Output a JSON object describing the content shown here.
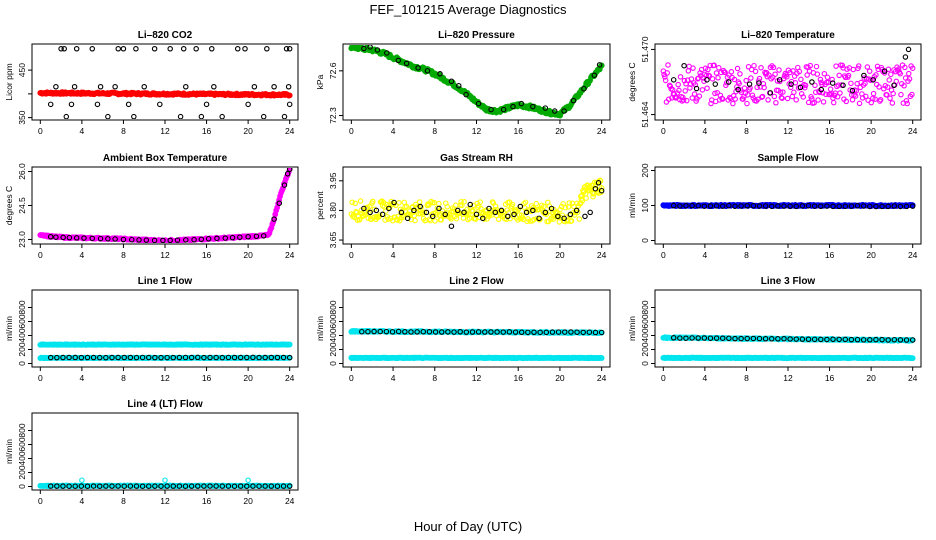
{
  "figure": {
    "title": "FEF_101215  Average Diagnostics",
    "xlabel": "Hour of Day (UTC)"
  },
  "chart_data": [
    {
      "type": "scatter",
      "title": "Li–820 CO2",
      "ylabel": "Licor ppm",
      "xticks": [
        0,
        4,
        8,
        12,
        16,
        20,
        24
      ],
      "xlim": [
        -0.8,
        24.8
      ],
      "yticks": [
        350,
        400,
        450
      ],
      "ytick_labels": [
        "350",
        "",
        "450"
      ],
      "ylim": [
        345,
        505
      ],
      "series": [
        {
          "color": "#ff0000",
          "marker": "dot",
          "kind": "band",
          "x_range": [
            0,
            24
          ],
          "y_start": 402,
          "y_end": 398,
          "jitter": 2
        },
        {
          "color": "#000000",
          "marker": "circle",
          "kind": "scatter",
          "x": [
            2.0,
            2.3,
            3.5,
            5.0,
            7.5,
            8.0,
            9.2,
            11.0,
            12.5,
            13.8,
            15.0,
            16.5,
            19.0,
            19.7,
            21.8,
            23.7,
            24.0,
            1.5,
            3.3,
            5.8,
            7.2,
            10.0,
            14.0,
            16.7,
            20.6,
            22.5,
            23.9,
            1.0,
            3.0,
            5.5,
            8.5,
            11.5,
            16.0,
            20.0,
            24.0,
            2.5,
            6.5,
            9.0,
            13.5,
            15.5,
            17.5,
            21.5,
            23.5
          ],
          "y": [
            495,
            495,
            495,
            495,
            495,
            495,
            495,
            495,
            495,
            495,
            495,
            495,
            495,
            495,
            495,
            495,
            495,
            415,
            415,
            415,
            415,
            415,
            415,
            415,
            415,
            415,
            415,
            378,
            378,
            378,
            378,
            378,
            378,
            378,
            378,
            352,
            352,
            352,
            352,
            352,
            352,
            352,
            352
          ]
        }
      ]
    },
    {
      "type": "line",
      "title": "Li–820 Pressure",
      "ylabel": "kPa",
      "xticks": [
        0,
        4,
        8,
        12,
        16,
        20,
        24
      ],
      "xlim": [
        -0.8,
        24.8
      ],
      "yticks": [
        72.3,
        72.6
      ],
      "ylim": [
        72.27,
        72.78
      ],
      "series": [
        {
          "color": "#00aa00",
          "marker": "dot",
          "kind": "profile",
          "jitter": 0.012,
          "x": [
            0,
            1,
            2,
            3,
            4,
            5,
            6,
            7,
            8,
            9,
            10,
            11,
            12,
            13,
            14,
            15,
            16,
            17,
            18,
            19,
            20,
            21,
            22,
            23,
            24
          ],
          "y": [
            72.76,
            72.75,
            72.74,
            72.72,
            72.69,
            72.66,
            72.63,
            72.61,
            72.58,
            72.54,
            72.5,
            72.45,
            72.39,
            72.34,
            72.33,
            72.35,
            72.37,
            72.36,
            72.34,
            72.32,
            72.31,
            72.37,
            72.46,
            72.55,
            72.63
          ]
        },
        {
          "color": "#000000",
          "marker": "circle",
          "kind": "scatter",
          "x": [
            1.2,
            1.8,
            2.5,
            3.4,
            4.5,
            5.3,
            6.4,
            7.3,
            8.5,
            9.6,
            10.3,
            11.0,
            12.2,
            13.4,
            14.6,
            15.5,
            16.3,
            17.4,
            18.6,
            19.5,
            20.4,
            21.3,
            22.3,
            23.3,
            23.8
          ],
          "y": [
            72.75,
            72.76,
            72.74,
            72.72,
            72.67,
            72.65,
            72.62,
            72.6,
            72.58,
            72.53,
            72.5,
            72.44,
            72.38,
            72.34,
            72.34,
            72.36,
            72.38,
            72.36,
            72.35,
            72.33,
            72.33,
            72.4,
            72.48,
            72.57,
            72.64
          ]
        }
      ]
    },
    {
      "type": "scatter",
      "title": "Li–820 Temperature",
      "ylabel": "degrees C",
      "xticks": [
        0,
        4,
        8,
        12,
        16,
        20,
        24
      ],
      "xlim": [
        -0.8,
        24.8
      ],
      "yticks": [
        51.464,
        51.47
      ],
      "ytick_labels": [
        "51.464",
        "51.470"
      ],
      "ylim": [
        51.4635,
        51.4705
      ],
      "series": [
        {
          "color": "#ff00ff",
          "marker": "circle",
          "kind": "band",
          "x_range": [
            0,
            24
          ],
          "y_start": 51.4668,
          "y_end": 51.4668,
          "jitter": 0.0018,
          "count": 320
        },
        {
          "color": "#000000",
          "marker": "circle",
          "kind": "scatter",
          "x": [
            1.0,
            2.0,
            3.2,
            4.2,
            5.0,
            6.3,
            7.2,
            8.3,
            9.2,
            10.3,
            11.2,
            12.3,
            13.2,
            14.3,
            15.2,
            16.3,
            17.3,
            18.2,
            19.3,
            20.2,
            21.3,
            22.2,
            23.3,
            23.6
          ],
          "y": [
            51.4672,
            51.4685,
            51.4664,
            51.4672,
            51.4668,
            51.467,
            51.4663,
            51.4668,
            51.4669,
            51.466,
            51.4672,
            51.4668,
            51.4665,
            51.467,
            51.4663,
            51.4669,
            51.4667,
            51.4662,
            51.4676,
            51.4672,
            51.468,
            51.4667,
            51.4693,
            51.47
          ]
        }
      ]
    },
    {
      "type": "line",
      "title": "Ambient Box Temperature",
      "ylabel": "degrees C",
      "xticks": [
        0,
        4,
        8,
        12,
        16,
        20,
        24
      ],
      "xlim": [
        -0.8,
        24.8
      ],
      "yticks": [
        23.0,
        24.5,
        26.0
      ],
      "ytick_labels": [
        "23.0",
        "24.5",
        "26.0"
      ],
      "ylim": [
        22.8,
        26.2
      ],
      "series": [
        {
          "color": "#ff00ff",
          "marker": "dot",
          "kind": "profile",
          "jitter": 0.03,
          "x": [
            0,
            1,
            2,
            3,
            4,
            5,
            6,
            7,
            8,
            9,
            10,
            11,
            12,
            13,
            14,
            15,
            16,
            17,
            18,
            19,
            20,
            21,
            22,
            22.5,
            23,
            23.5,
            24
          ],
          "y": [
            23.22,
            23.13,
            23.1,
            23.08,
            23.07,
            23.06,
            23.05,
            23.04,
            23.02,
            23.0,
            22.98,
            22.96,
            22.95,
            22.96,
            22.98,
            23.0,
            23.03,
            23.05,
            23.07,
            23.1,
            23.13,
            23.15,
            23.2,
            23.9,
            24.8,
            25.5,
            26.1
          ]
        },
        {
          "color": "#000000",
          "marker": "circle",
          "kind": "scatter",
          "x": [
            1.0,
            1.5,
            2.2,
            2.8,
            3.5,
            4.2,
            5.0,
            5.8,
            6.5,
            7.2,
            8.0,
            8.8,
            9.5,
            10.2,
            11.0,
            11.8,
            12.5,
            13.2,
            14.0,
            14.8,
            15.5,
            16.2,
            17.0,
            17.8,
            18.5,
            19.2,
            20.0,
            20.8,
            21.5,
            22.5,
            23.0,
            23.5,
            23.8,
            24.0
          ],
          "y": [
            23.12,
            23.1,
            23.09,
            23.08,
            23.07,
            23.06,
            23.05,
            23.04,
            23.03,
            23.02,
            23.0,
            22.99,
            22.98,
            22.97,
            22.96,
            22.96,
            22.96,
            22.97,
            22.98,
            22.99,
            23.01,
            23.03,
            23.05,
            23.06,
            23.08,
            23.1,
            23.12,
            23.14,
            23.16,
            23.9,
            24.6,
            25.4,
            25.9,
            26.1
          ]
        }
      ]
    },
    {
      "type": "scatter",
      "title": "Gas Stream RH",
      "ylabel": "percent",
      "xticks": [
        0,
        4,
        8,
        12,
        16,
        20,
        24
      ],
      "xlim": [
        -0.8,
        24.8
      ],
      "yticks": [
        3.65,
        3.8,
        3.95
      ],
      "ytick_labels": [
        "3.65",
        "3.80",
        "3.95"
      ],
      "ylim": [
        3.63,
        4.02
      ],
      "series": [
        {
          "color": "#ffff00",
          "marker": "circle",
          "kind": "band",
          "x_range": [
            0,
            22
          ],
          "y_start": 3.8,
          "y_end": 3.79,
          "jitter": 0.05,
          "count": 300
        },
        {
          "color": "#ffff00",
          "marker": "circle",
          "kind": "band",
          "x_range": [
            22,
            24
          ],
          "y_start": 3.88,
          "y_end": 3.93,
          "jitter": 0.04,
          "count": 40
        },
        {
          "color": "#000000",
          "marker": "circle",
          "kind": "scatter",
          "x": [
            1.2,
            1.8,
            2.4,
            3.0,
            3.6,
            4.1,
            4.8,
            5.4,
            6.0,
            6.6,
            7.2,
            7.8,
            8.4,
            9.0,
            9.6,
            10.2,
            10.8,
            11.4,
            12.0,
            12.6,
            13.2,
            13.8,
            14.4,
            15.0,
            15.6,
            16.2,
            16.8,
            17.4,
            18.0,
            18.6,
            19.2,
            19.8,
            20.4,
            21.0,
            21.6,
            22.4,
            22.9,
            23.4,
            23.7,
            24.0
          ],
          "y": [
            3.81,
            3.79,
            3.8,
            3.78,
            3.81,
            3.84,
            3.79,
            3.76,
            3.8,
            3.82,
            3.79,
            3.77,
            3.81,
            3.78,
            3.72,
            3.8,
            3.79,
            3.83,
            3.78,
            3.76,
            3.81,
            3.79,
            3.8,
            3.77,
            3.78,
            3.82,
            3.79,
            3.8,
            3.76,
            3.79,
            3.81,
            3.77,
            3.76,
            3.78,
            3.8,
            3.77,
            3.79,
            3.91,
            3.94,
            3.9
          ]
        }
      ]
    },
    {
      "type": "scatter",
      "title": "Sample Flow",
      "ylabel": "ml/min",
      "xticks": [
        0,
        4,
        8,
        12,
        16,
        20,
        24
      ],
      "xlim": [
        -0.8,
        24.8
      ],
      "yticks": [
        0,
        100,
        200
      ],
      "ylim": [
        -10,
        210
      ],
      "series": [
        {
          "color": "#0000ff",
          "marker": "dot",
          "kind": "band",
          "x_range": [
            0,
            24
          ],
          "y_start": 100,
          "y_end": 100,
          "jitter": 2
        },
        {
          "color": "#000000",
          "marker": "circle",
          "kind": "band",
          "x_range": [
            1,
            24
          ],
          "y_start": 99,
          "y_end": 98,
          "jitter": 1,
          "count": 40
        }
      ]
    },
    {
      "type": "scatter",
      "title": "Line 1 Flow",
      "ylabel": "ml/min",
      "xticks": [
        0,
        4,
        8,
        12,
        16,
        20,
        24
      ],
      "xlim": [
        -0.8,
        24.8
      ],
      "yticks": [
        0,
        200,
        400,
        600,
        800
      ],
      "ylim": [
        -50,
        1050
      ],
      "series": [
        {
          "color": "#00e5ee",
          "marker": "dot",
          "kind": "band",
          "x_range": [
            0,
            24
          ],
          "y_start": 270,
          "y_end": 270,
          "jitter": 4
        },
        {
          "color": "#00e5ee",
          "marker": "dot",
          "kind": "band",
          "x_range": [
            0,
            24
          ],
          "y_start": 80,
          "y_end": 80,
          "jitter": 4
        },
        {
          "color": "#000000",
          "marker": "circle",
          "kind": "band",
          "x_range": [
            1,
            24
          ],
          "y_start": 85,
          "y_end": 85,
          "jitter": 2,
          "count": 40
        }
      ]
    },
    {
      "type": "scatter",
      "title": "Line 2 Flow",
      "ylabel": "ml/min",
      "xticks": [
        0,
        4,
        8,
        12,
        16,
        20,
        24
      ],
      "xlim": [
        -0.8,
        24.8
      ],
      "yticks": [
        0,
        200,
        400,
        600,
        800
      ],
      "ylim": [
        -50,
        1050
      ],
      "series": [
        {
          "color": "#00e5ee",
          "marker": "dot",
          "kind": "band",
          "x_range": [
            0,
            24
          ],
          "y_start": 460,
          "y_end": 440,
          "jitter": 8
        },
        {
          "color": "#00e5ee",
          "marker": "dot",
          "kind": "band",
          "x_range": [
            0,
            24
          ],
          "y_start": 80,
          "y_end": 80,
          "jitter": 4
        },
        {
          "color": "#000000",
          "marker": "circle",
          "kind": "band",
          "x_range": [
            1,
            24
          ],
          "y_start": 455,
          "y_end": 445,
          "jitter": 3,
          "count": 40
        }
      ]
    },
    {
      "type": "scatter",
      "title": "Line 3 Flow",
      "ylabel": "ml/min",
      "xticks": [
        0,
        4,
        8,
        12,
        16,
        20,
        24
      ],
      "xlim": [
        -0.8,
        24.8
      ],
      "yticks": [
        0,
        200,
        400,
        600,
        800
      ],
      "ylim": [
        -50,
        1050
      ],
      "series": [
        {
          "color": "#00e5ee",
          "marker": "dot",
          "kind": "band",
          "x_range": [
            0,
            24
          ],
          "y_start": 370,
          "y_end": 330,
          "jitter": 8
        },
        {
          "color": "#00e5ee",
          "marker": "dot",
          "kind": "band",
          "x_range": [
            0,
            24
          ],
          "y_start": 80,
          "y_end": 80,
          "jitter": 4
        },
        {
          "color": "#000000",
          "marker": "circle",
          "kind": "band",
          "x_range": [
            1,
            24
          ],
          "y_start": 365,
          "y_end": 335,
          "jitter": 3,
          "count": 40
        }
      ]
    },
    {
      "type": "scatter",
      "title": "Line 4 (LT) Flow",
      "ylabel": "ml/min",
      "xticks": [
        0,
        4,
        8,
        12,
        16,
        20,
        24
      ],
      "xlim": [
        -0.8,
        24.8
      ],
      "yticks": [
        0,
        200,
        400,
        600,
        800
      ],
      "ylim": [
        -50,
        1050
      ],
      "series": [
        {
          "color": "#00e5ee",
          "marker": "dot",
          "kind": "band",
          "x_range": [
            0,
            24
          ],
          "y_start": 10,
          "y_end": 10,
          "jitter": 4
        },
        {
          "color": "#00e5ee",
          "marker": "circle",
          "kind": "scatter",
          "x": [
            4,
            12,
            20
          ],
          "y": [
            90,
            90,
            90
          ]
        },
        {
          "color": "#000000",
          "marker": "circle",
          "kind": "band",
          "x_range": [
            1,
            24
          ],
          "y_start": 5,
          "y_end": 5,
          "jitter": 1,
          "count": 40
        }
      ]
    }
  ]
}
